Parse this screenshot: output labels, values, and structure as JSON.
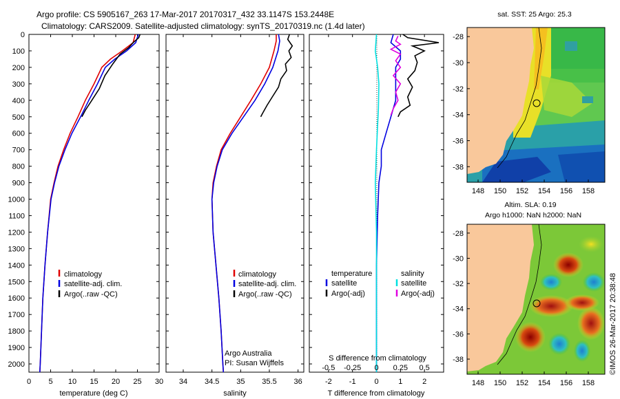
{
  "figure": {
    "title_line1": "Argo profile: CS 5905167_263 17-Mar-2017 20170317_432 33.1147S 153.2448E",
    "title_line2": "Climatology: CARS2009. Satellite-adjusted climatology: synTS_20170319.nc (1.4d later)",
    "credit_vertical": "©IMOS 26-Mar-2017 20:38:48",
    "colors": {
      "climatology": "#e00000",
      "satellite": "#0000e0",
      "argo": "#000000",
      "s_satellite": "#00e0e0",
      "s_argo": "#e000e0",
      "land": "#f9c89b"
    }
  },
  "chart_data": [
    {
      "id": "temperature",
      "type": "line",
      "xlabel": "temperature (deg C)",
      "xlim": [
        0,
        30
      ],
      "xticks": [
        "0",
        "5",
        "10",
        "15",
        "20",
        "25",
        "30"
      ],
      "ylim": [
        2050,
        0
      ],
      "yticks": [
        "0",
        "100",
        "200",
        "300",
        "400",
        "500",
        "600",
        "700",
        "800",
        "900",
        "1000",
        "1100",
        "1200",
        "1300",
        "1400",
        "1500",
        "1600",
        "1700",
        "1800",
        "1900",
        "2000"
      ],
      "legend": [
        "climatology",
        "satellite-adj. clim.",
        "Argo(..raw -QC)"
      ],
      "series": [
        {
          "name": "climatology",
          "color": "#e00000",
          "points": [
            [
              24.5,
              0
            ],
            [
              24.0,
              50
            ],
            [
              21.5,
              100
            ],
            [
              18.8,
              150
            ],
            [
              16.8,
              200
            ],
            [
              15.0,
              300
            ],
            [
              13.0,
              400
            ],
            [
              11.3,
              500
            ],
            [
              9.5,
              600
            ],
            [
              8.0,
              700
            ],
            [
              6.7,
              800
            ],
            [
              5.8,
              900
            ],
            [
              5.0,
              1000
            ],
            [
              4.3,
              1200
            ],
            [
              3.7,
              1400
            ],
            [
              3.2,
              1600
            ],
            [
              2.9,
              1800
            ],
            [
              2.6,
              2000
            ],
            [
              2.5,
              2050
            ]
          ]
        },
        {
          "name": "satellite-adj. clim.",
          "color": "#0000e0",
          "points": [
            [
              25.2,
              0
            ],
            [
              24.6,
              50
            ],
            [
              22.5,
              100
            ],
            [
              19.8,
              150
            ],
            [
              17.6,
              200
            ],
            [
              15.8,
              300
            ],
            [
              13.8,
              400
            ],
            [
              11.9,
              500
            ],
            [
              9.9,
              600
            ],
            [
              8.3,
              700
            ],
            [
              6.9,
              800
            ],
            [
              5.9,
              900
            ],
            [
              5.1,
              1000
            ],
            [
              4.3,
              1200
            ],
            [
              3.7,
              1400
            ],
            [
              3.2,
              1600
            ],
            [
              2.9,
              1800
            ],
            [
              2.6,
              2000
            ],
            [
              2.5,
              2050
            ]
          ]
        },
        {
          "name": "Argo(..raw -QC)",
          "color": "#000000",
          "points": [
            [
              25.6,
              0
            ],
            [
              25.3,
              20
            ],
            [
              24.0,
              50
            ],
            [
              23.0,
              80
            ],
            [
              21.0,
              120
            ],
            [
              19.3,
              180
            ],
            [
              17.5,
              250
            ],
            [
              16.2,
              330
            ],
            [
              14.5,
              400
            ],
            [
              13.0,
              460
            ],
            [
              12.2,
              500
            ]
          ]
        }
      ]
    },
    {
      "id": "salinity",
      "type": "line",
      "xlabel": "salinity",
      "xlim": [
        33.7,
        36.1
      ],
      "xticks": [
        "34",
        "34.5",
        "35",
        "35.5",
        "36"
      ],
      "ylim": [
        2050,
        0
      ],
      "legend": [
        "climatology",
        "satellite-adj. clim.",
        "Argo(..raw -QC)"
      ],
      "annotation": [
        "Argo Australia",
        "PI: Susan Wijffels"
      ],
      "series": [
        {
          "name": "climatology",
          "color": "#e00000",
          "points": [
            [
              35.62,
              0
            ],
            [
              35.62,
              40
            ],
            [
              35.58,
              100
            ],
            [
              35.5,
              200
            ],
            [
              35.35,
              300
            ],
            [
              35.18,
              400
            ],
            [
              35.0,
              500
            ],
            [
              34.82,
              600
            ],
            [
              34.66,
              700
            ],
            [
              34.58,
              800
            ],
            [
              34.52,
              900
            ],
            [
              34.5,
              1000
            ],
            [
              34.52,
              1200
            ],
            [
              34.57,
              1400
            ],
            [
              34.62,
              1600
            ],
            [
              34.66,
              1800
            ],
            [
              34.69,
              2000
            ],
            [
              34.7,
              2050
            ]
          ]
        },
        {
          "name": "satellite-adj. clim.",
          "color": "#0000e0",
          "points": [
            [
              35.66,
              0
            ],
            [
              35.68,
              40
            ],
            [
              35.65,
              100
            ],
            [
              35.56,
              200
            ],
            [
              35.42,
              300
            ],
            [
              35.25,
              400
            ],
            [
              35.05,
              500
            ],
            [
              34.85,
              600
            ],
            [
              34.68,
              700
            ],
            [
              34.59,
              800
            ],
            [
              34.53,
              900
            ],
            [
              34.5,
              1000
            ],
            [
              34.52,
              1200
            ],
            [
              34.57,
              1400
            ],
            [
              34.62,
              1600
            ],
            [
              34.66,
              1800
            ],
            [
              34.69,
              2000
            ],
            [
              34.7,
              2050
            ]
          ]
        },
        {
          "name": "Argo(..raw -QC)",
          "color": "#000000",
          "points": [
            [
              35.85,
              0
            ],
            [
              35.82,
              30
            ],
            [
              35.9,
              70
            ],
            [
              35.84,
              100
            ],
            [
              35.88,
              140
            ],
            [
              35.78,
              180
            ],
            [
              35.8,
              220
            ],
            [
              35.7,
              270
            ],
            [
              35.66,
              320
            ],
            [
              35.55,
              380
            ],
            [
              35.46,
              430
            ],
            [
              35.38,
              480
            ],
            [
              35.35,
              500
            ]
          ]
        }
      ]
    },
    {
      "id": "difference",
      "type": "line",
      "xlabel": "T difference from climatology",
      "xlabel2": "S difference from climatology",
      "xlim": [
        -2.8,
        2.8
      ],
      "xticks": [
        "-2",
        "-1",
        "0",
        "1",
        "2"
      ],
      "xticks_s": [
        "-0.5",
        "-0.25",
        "0",
        "0.25",
        "0.5"
      ],
      "ylim": [
        2050,
        0
      ],
      "legend_temperature": [
        "temperature",
        "satellite",
        "Argo(-adj)"
      ],
      "legend_salinity": [
        "salinity",
        "satellite",
        "Argo(-adj)"
      ],
      "series": [
        {
          "name": "satellite",
          "color": "#0000e0",
          "points": [
            [
              0.7,
              0
            ],
            [
              0.6,
              50
            ],
            [
              1.0,
              100
            ],
            [
              1.0,
              150
            ],
            [
              0.8,
              200
            ],
            [
              0.8,
              300
            ],
            [
              0.8,
              400
            ],
            [
              0.6,
              500
            ],
            [
              0.4,
              600
            ],
            [
              0.2,
              700
            ],
            [
              0.2,
              800
            ],
            [
              0.1,
              900
            ],
            [
              0.05,
              1100
            ],
            [
              0.0,
              1400
            ],
            [
              0.0,
              2050
            ]
          ]
        },
        {
          "name": "Argo(-adj)",
          "color": "#000000",
          "points": [
            [
              1.1,
              0
            ],
            [
              1.3,
              20
            ],
            [
              2.6,
              50
            ],
            [
              1.5,
              70
            ],
            [
              2.0,
              100
            ],
            [
              1.6,
              130
            ],
            [
              1.7,
              170
            ],
            [
              1.6,
              220
            ],
            [
              1.3,
              270
            ],
            [
              1.5,
              320
            ],
            [
              1.3,
              380
            ],
            [
              1.4,
              430
            ],
            [
              1.0,
              470
            ],
            [
              0.9,
              500
            ]
          ]
        },
        {
          "name": "satellite",
          "color": "#00e0e0",
          "points": [
            [
              0.0,
              0
            ],
            [
              -0.05,
              100
            ],
            [
              0.05,
              200
            ],
            [
              0.1,
              300
            ],
            [
              0.08,
              450
            ],
            [
              0.0,
              700
            ],
            [
              -0.05,
              900
            ],
            [
              0.0,
              1200
            ],
            [
              0.0,
              2050
            ]
          ]
        },
        {
          "name": "Argo(-adj)",
          "color": "#e000e0",
          "points": [
            [
              0.9,
              10
            ],
            [
              0.8,
              40
            ],
            [
              1.0,
              60
            ],
            [
              0.6,
              90
            ],
            [
              1.0,
              120
            ],
            [
              0.8,
              160
            ],
            [
              1.0,
              200
            ],
            [
              0.7,
              250
            ],
            [
              1.0,
              300
            ],
            [
              0.8,
              350
            ],
            [
              0.9,
              400
            ],
            [
              0.7,
              450
            ],
            [
              0.6,
              490
            ]
          ]
        }
      ]
    },
    {
      "id": "sst_map",
      "type": "heatmap",
      "title": "sat. SST: 25 Argo: 25.3",
      "xlim": [
        147,
        159.5
      ],
      "ylim": [
        -39.2,
        -27.3
      ],
      "xticks": [
        "148",
        "150",
        "152",
        "154",
        "156",
        "158"
      ],
      "yticks": [
        "-28",
        "-30",
        "-32",
        "-34",
        "-36",
        "-38"
      ],
      "argo_position": [
        153.24,
        -33.11
      ]
    },
    {
      "id": "sla_map",
      "type": "heatmap",
      "title": "Altim. SLA: 0.19",
      "subtitle": "Argo h1000: NaN h2000: NaN",
      "xlim": [
        147,
        159.5
      ],
      "ylim": [
        -39.2,
        -27.3
      ],
      "xticks": [
        "148",
        "150",
        "152",
        "154",
        "156",
        "158"
      ],
      "yticks": [
        "-28",
        "-30",
        "-32",
        "-34",
        "-36",
        "-38"
      ],
      "argo_position": [
        153.24,
        -33.11
      ]
    }
  ]
}
